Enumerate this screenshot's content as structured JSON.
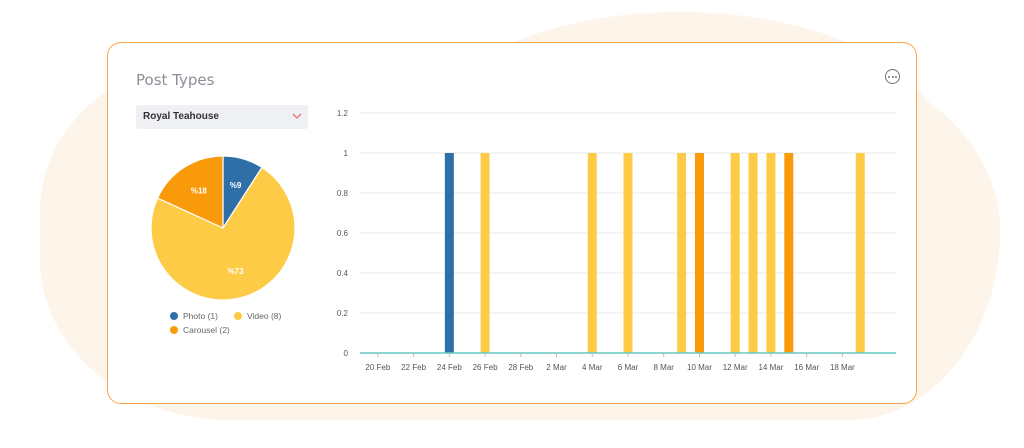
{
  "card": {
    "title": "Post Types",
    "more_icon": "more-horizontal-icon",
    "dropdown": {
      "selected": "Royal Teahouse",
      "chevron_icon": "chevron-down-icon"
    }
  },
  "colors": {
    "photo": "#2e6fa7",
    "video": "#fdcb45",
    "carousel": "#f99a0b",
    "accent": "#f7a54a",
    "baseline": "#66c8c4"
  },
  "pie": {
    "slices": [
      {
        "name": "Photo",
        "count": 1,
        "label": "%9",
        "key": "photo"
      },
      {
        "name": "Video",
        "count": 8,
        "label": "%73",
        "key": "video"
      },
      {
        "name": "Carousel",
        "count": 2,
        "label": "%18",
        "key": "carousel"
      }
    ]
  },
  "legend": {
    "photo": "Photo (1)",
    "video": "Video (8)",
    "carousel": "Carousel (2)"
  },
  "chart_data": {
    "type": "bar",
    "x_ticks": [
      "20 Feb",
      "22 Feb",
      "24 Feb",
      "26 Feb",
      "28 Feb",
      "2 Mar",
      "4 Mar",
      "6 Mar",
      "8 Mar",
      "10 Mar",
      "12 Mar",
      "14 Mar",
      "16 Mar",
      "18 Mar"
    ],
    "y_ticks": [
      "0",
      "0.2",
      "0.4",
      "0.6",
      "0.8",
      "1",
      "1.2"
    ],
    "ylim": [
      0,
      1.2
    ],
    "xlim": [
      "2024-02-19",
      "2024-03-20"
    ],
    "bars": [
      {
        "date": "2024-02-24",
        "value": 1,
        "series": "photo"
      },
      {
        "date": "2024-02-26",
        "value": 1,
        "series": "video"
      },
      {
        "date": "2024-03-03",
        "value": 1,
        "series": "video"
      },
      {
        "date": "2024-03-05",
        "value": 1,
        "series": "video"
      },
      {
        "date": "2024-03-08",
        "value": 1,
        "series": "video"
      },
      {
        "date": "2024-03-09",
        "value": 1,
        "series": "carousel"
      },
      {
        "date": "2024-03-11",
        "value": 1,
        "series": "video"
      },
      {
        "date": "2024-03-12",
        "value": 1,
        "series": "video"
      },
      {
        "date": "2024-03-13",
        "value": 1,
        "series": "video"
      },
      {
        "date": "2024-03-14",
        "value": 1,
        "series": "carousel"
      },
      {
        "date": "2024-03-18",
        "value": 1,
        "series": "video"
      }
    ]
  }
}
